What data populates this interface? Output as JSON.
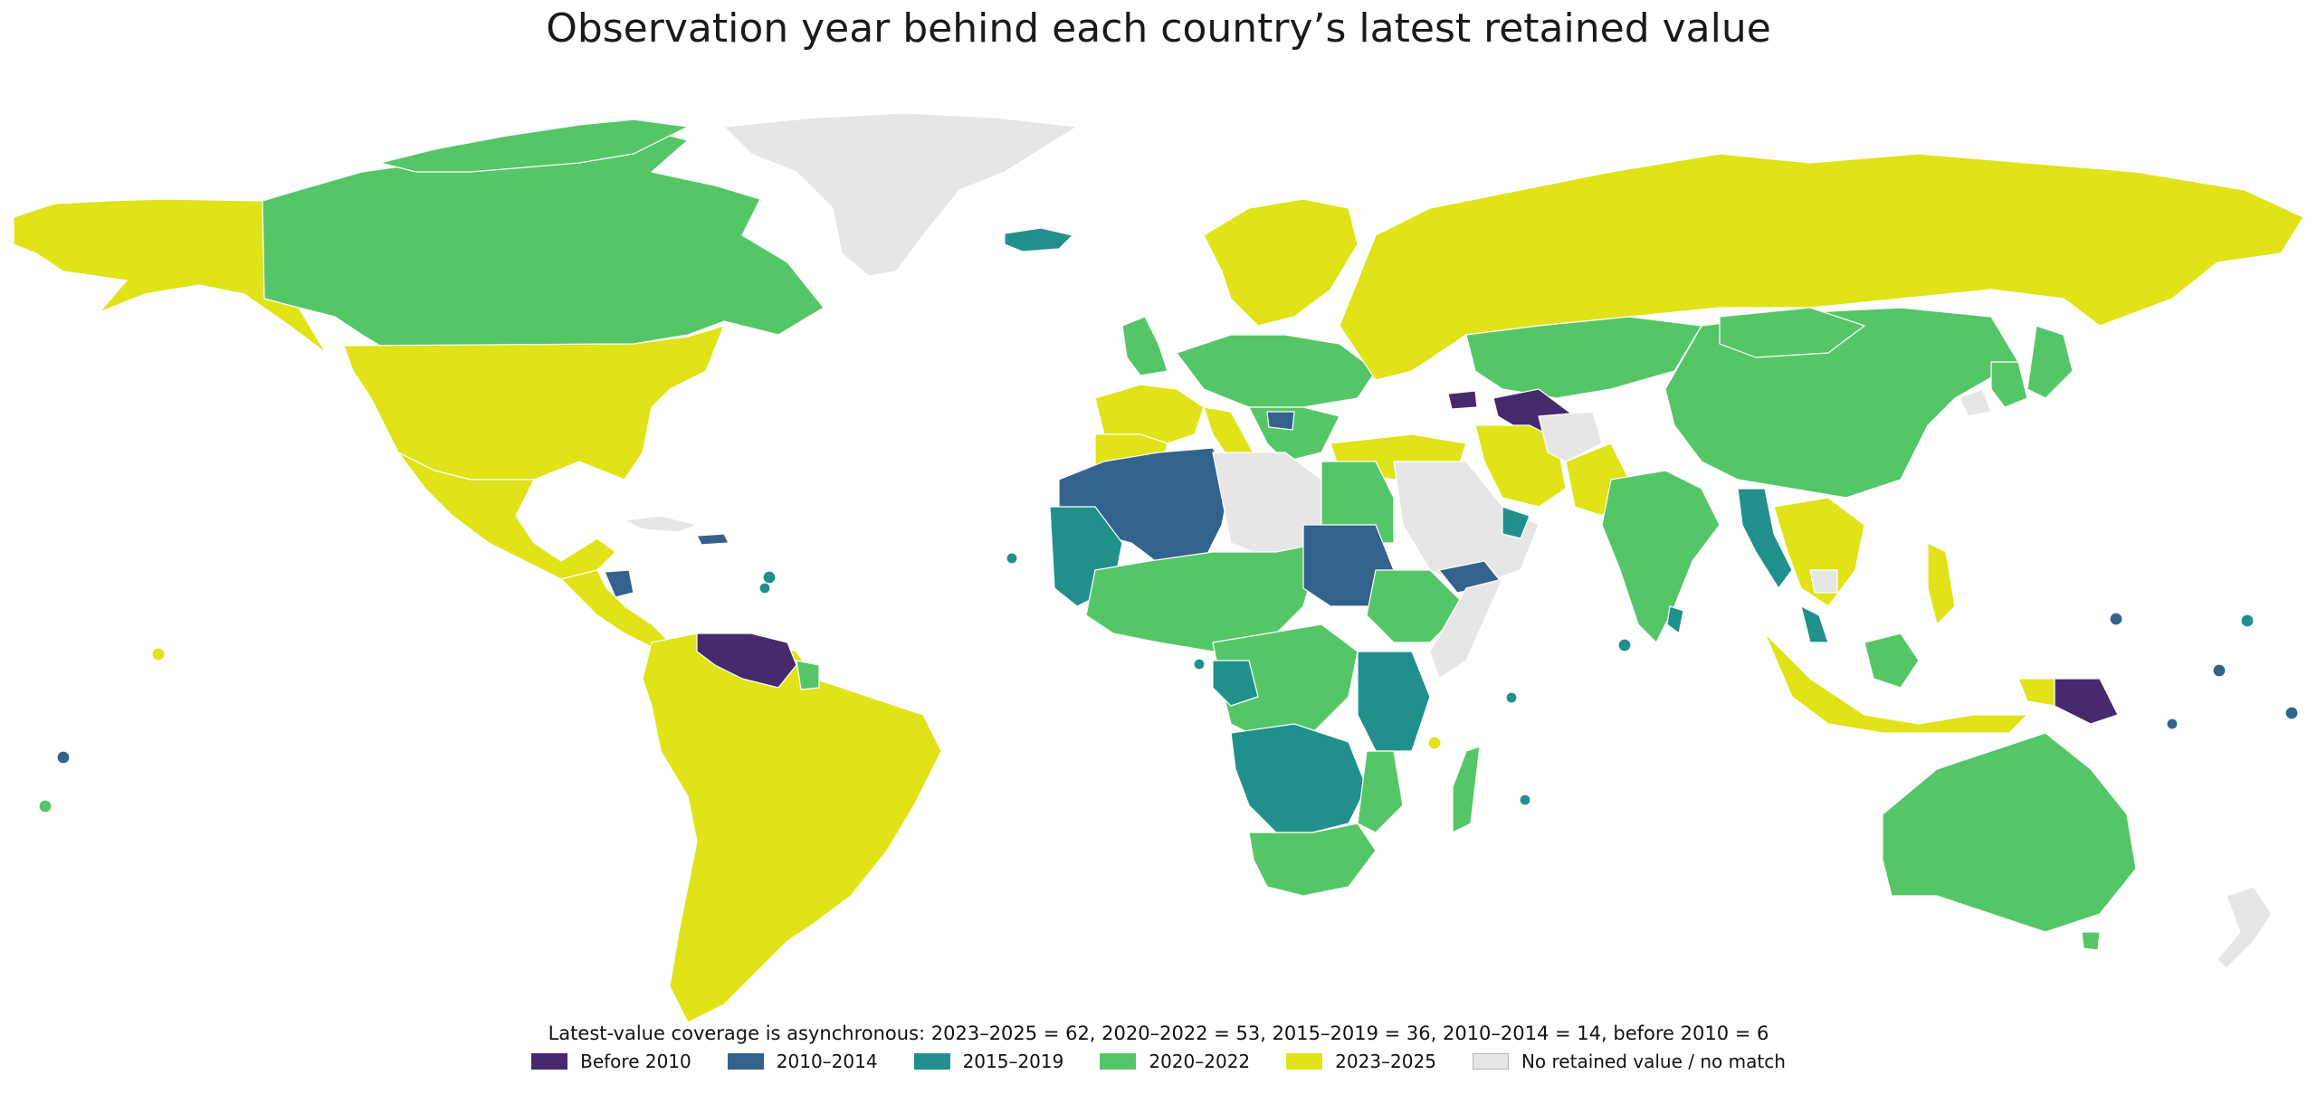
{
  "title": "Observation year behind each country’s latest retained value",
  "note": "Latest-value coverage is asynchronous: 2023–2025 = 62, 2020–2022 = 53, 2015–2019 = 36, 2010–2014 = 14, before 2010 = 6",
  "colors": {
    "before_2010": "#472a6e",
    "y2010_2014": "#33638d",
    "y2015_2019": "#21908c",
    "y2020_2022": "#55c667",
    "y2023_2025": "#dfe318",
    "no_data": "#e6e6e6"
  },
  "legend": [
    {
      "label": "Before 2010",
      "key": "before_2010"
    },
    {
      "label": "2010–2014",
      "key": "y2010_2014"
    },
    {
      "label": "2015–2019",
      "key": "y2015_2019"
    },
    {
      "label": "2020–2022",
      "key": "y2020_2022"
    },
    {
      "label": "2023–2025",
      "key": "y2023_2025"
    },
    {
      "label": "No retained value / no match",
      "key": "no_data"
    }
  ]
}
